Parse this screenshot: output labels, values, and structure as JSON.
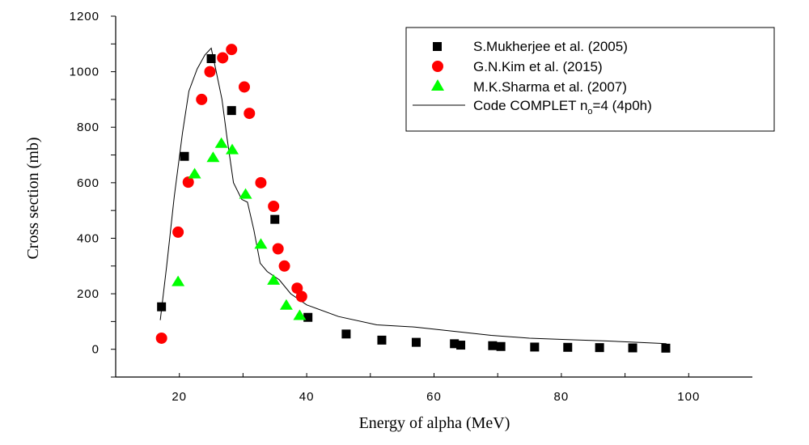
{
  "chart_data": {
    "type": "scatter",
    "xlabel": "Energy of alpha (MeV)",
    "ylabel": "Cross section (mb)",
    "xlim": [
      10,
      110
    ],
    "ylim": [
      -100,
      1200
    ],
    "x_ticks": [
      20,
      40,
      60,
      80,
      100
    ],
    "y_ticks": [
      0,
      200,
      400,
      600,
      800,
      1000,
      1200
    ],
    "grid": false,
    "legend_position": "top-right",
    "series": [
      {
        "name": "S.Mukherjee et al. (2005)",
        "marker": "square",
        "color": "#000000",
        "points": [
          [
            17.2,
            153
          ],
          [
            20.8,
            695
          ],
          [
            25.0,
            1047
          ],
          [
            28.2,
            860
          ],
          [
            35.0,
            468
          ],
          [
            40.2,
            115
          ],
          [
            46.2,
            55
          ],
          [
            51.8,
            33
          ],
          [
            57.2,
            25
          ],
          [
            63.2,
            20
          ],
          [
            64.2,
            15
          ],
          [
            69.2,
            13
          ],
          [
            70.5,
            10
          ],
          [
            75.8,
            8
          ],
          [
            81.0,
            7
          ],
          [
            86.0,
            6
          ],
          [
            91.2,
            5
          ],
          [
            96.4,
            4
          ]
        ]
      },
      {
        "name": "G.N.Kim et al. (2015)",
        "marker": "circle",
        "color": "#ff0000",
        "points": [
          [
            17.2,
            40
          ],
          [
            19.8,
            422
          ],
          [
            21.4,
            602
          ],
          [
            23.5,
            900
          ],
          [
            24.8,
            1000
          ],
          [
            26.8,
            1050
          ],
          [
            28.2,
            1080
          ],
          [
            30.2,
            945
          ],
          [
            31.0,
            850
          ],
          [
            32.8,
            600
          ],
          [
            34.8,
            515
          ],
          [
            35.5,
            362
          ],
          [
            36.5,
            300
          ],
          [
            38.5,
            220
          ],
          [
            39.2,
            190
          ]
        ]
      },
      {
        "name": "M.K.Sharma et al. (2007)",
        "marker": "triangle",
        "color": "#00ff00",
        "points": [
          [
            19.8,
            245
          ],
          [
            22.4,
            633
          ],
          [
            25.3,
            692
          ],
          [
            26.6,
            743
          ],
          [
            28.3,
            720
          ],
          [
            30.4,
            560
          ],
          [
            32.8,
            380
          ],
          [
            34.8,
            250
          ],
          [
            36.8,
            160
          ],
          [
            38.9,
            123
          ]
        ]
      },
      {
        "name": "Code COMPLET n_o=4 (4p0h)",
        "marker": "line",
        "color": "#000000",
        "points": [
          [
            17.0,
            105
          ],
          [
            18.0,
            300
          ],
          [
            19.2,
            550
          ],
          [
            20.5,
            780
          ],
          [
            21.5,
            930
          ],
          [
            22.8,
            1010
          ],
          [
            24.0,
            1060
          ],
          [
            25.0,
            1085
          ],
          [
            25.8,
            1000
          ],
          [
            26.7,
            900
          ],
          [
            27.5,
            760
          ],
          [
            28.5,
            600
          ],
          [
            29.8,
            540
          ],
          [
            30.7,
            530
          ],
          [
            31.7,
            430
          ],
          [
            32.7,
            310
          ],
          [
            33.8,
            280
          ],
          [
            35.7,
            250
          ],
          [
            37.5,
            200
          ],
          [
            40.0,
            160
          ],
          [
            45.0,
            118
          ],
          [
            51.0,
            88
          ],
          [
            57.0,
            80
          ],
          [
            63.0,
            65
          ],
          [
            69.0,
            50
          ],
          [
            75.0,
            40
          ],
          [
            81.0,
            35
          ],
          [
            87.0,
            30
          ],
          [
            92.0,
            25
          ],
          [
            96.5,
            20
          ]
        ]
      }
    ],
    "legend_labels": {
      "s1": "S.Mukherjee et al. (2005)",
      "s2": "G.N.Kim et al. (2015)",
      "s3": "M.K.Sharma et al. (2007)",
      "s4_main": "Code COMPLET n",
      "s4_sub": "o",
      "s4_tail": "=4 (4p0h)"
    }
  }
}
